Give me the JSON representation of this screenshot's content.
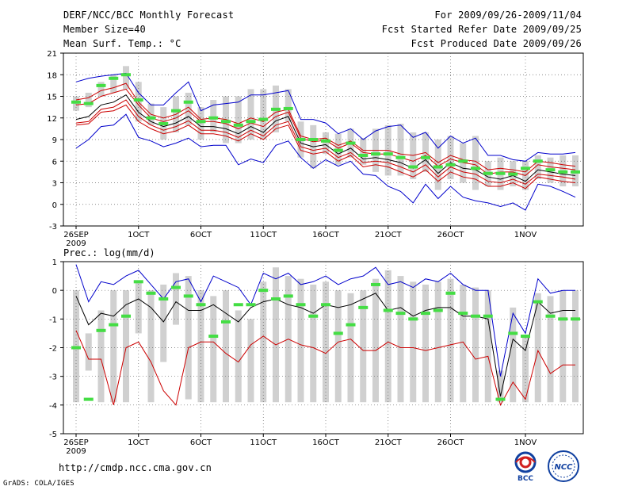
{
  "header": {
    "title": "DERF/NCC/BCC Monthly Forecast",
    "member_size": "Member Size=40",
    "variable": "Mean Surf. Temp.: °C",
    "period": "For 2009/09/26-2009/11/04",
    "started": "Fcst Started Refer Date 2009/09/25",
    "produced": "Fcst Produced Date 2009/09/26"
  },
  "footer": {
    "url": "http://cmdp.ncc.cma.gov.cn",
    "credit": "GrADS: COLA/IGES",
    "logo_bcc": "BCC",
    "logo_ncc": "NCC"
  },
  "colors": {
    "blue": "#0000cc",
    "red": "#cc0000",
    "black": "#000000",
    "green": "#44dd44",
    "box": "#d0d0d0",
    "grid": "#666666"
  },
  "chart_data": [
    {
      "type": "line",
      "title": "Mean Surf. Temp.: °C",
      "ylim": [
        -3,
        21
      ],
      "yticks": [
        -3,
        0,
        3,
        6,
        9,
        12,
        15,
        18,
        21
      ],
      "xlim": [
        0,
        39
      ],
      "xticks": [
        {
          "day": 0,
          "label": "26SEP",
          "sub": "2009"
        },
        {
          "day": 5,
          "label": "1OCT"
        },
        {
          "day": 10,
          "label": "6OCT"
        },
        {
          "day": 15,
          "label": "11OCT"
        },
        {
          "day": 20,
          "label": "16OCT"
        },
        {
          "day": 25,
          "label": "21OCT"
        },
        {
          "day": 30,
          "label": "26OCT"
        },
        {
          "day": 36,
          "label": "1NOV"
        }
      ],
      "series": [
        {
          "name": "max",
          "color": "blue",
          "values": [
            7.8,
            9,
            10.8,
            11,
            12.5,
            9.3,
            8.8,
            8,
            8.5,
            9.2,
            8,
            8.2,
            8.2,
            5.5,
            6.3,
            5.8,
            8.2,
            8.8,
            6.5,
            5,
            6.2,
            5.3,
            6,
            4.2,
            4,
            2.5,
            1.8,
            0.2,
            2.8,
            0.8,
            2.5,
            1,
            0.5,
            0.2,
            -0.3,
            0.2,
            -0.8,
            2.8,
            2.5,
            1.8,
            1
          ]
        },
        {
          "name": "p90",
          "color": "red",
          "values": [
            14.5,
            14.8,
            15.8,
            16.2,
            16.8,
            14.2,
            12.5,
            12,
            12.5,
            13.5,
            11.8,
            12,
            11.8,
            11.2,
            12,
            11.5,
            12.8,
            13.2,
            9.5,
            9,
            9.2,
            8.2,
            8.8,
            7.5,
            7.5,
            7.5,
            7,
            6.8,
            7.2,
            5.8,
            6.8,
            6.2,
            6,
            4.8,
            5,
            4.8,
            4.5,
            6,
            5.8,
            5.5,
            5.3
          ]
        },
        {
          "name": "p75",
          "color": "red",
          "values": [
            13.8,
            14,
            15,
            15.5,
            16,
            13.8,
            12,
            11.5,
            12,
            13,
            11.5,
            11.5,
            11.2,
            10.5,
            11.3,
            10.8,
            12.2,
            12.8,
            9.2,
            8.7,
            8.9,
            7.8,
            8.5,
            7.2,
            7,
            7,
            6.5,
            6,
            6.8,
            5.3,
            6.3,
            5.8,
            5.5,
            4.2,
            4.5,
            4.5,
            4,
            5.5,
            5.2,
            5,
            4.8
          ]
        },
        {
          "name": "mean",
          "color": "black",
          "values": [
            11.8,
            12.2,
            13.8,
            14.2,
            15.2,
            12.8,
            11.5,
            10.8,
            11.3,
            12.2,
            10.8,
            10.8,
            10.5,
            9.8,
            10.8,
            10,
            11.6,
            12.2,
            8.5,
            8,
            8.3,
            7,
            7.8,
            6.3,
            6.5,
            6.2,
            5.8,
            5,
            6.2,
            4.3,
            5.8,
            5,
            4.8,
            3.8,
            3.5,
            4,
            3.2,
            4.8,
            4.5,
            4.2,
            4
          ]
        },
        {
          "name": "p25",
          "color": "red",
          "values": [
            11.3,
            11.5,
            13.2,
            13.5,
            14.5,
            12.2,
            11,
            10.3,
            10.8,
            11.6,
            10.3,
            10.3,
            10,
            9.3,
            10.3,
            9.5,
            11,
            11.5,
            8,
            7.5,
            7.8,
            6.5,
            7.2,
            5.8,
            6,
            5.8,
            5.2,
            4.5,
            5.5,
            3.8,
            5.2,
            4.5,
            4.2,
            3.2,
            3,
            3.5,
            2.8,
            4.2,
            4,
            3.8,
            3.5
          ]
        },
        {
          "name": "p10",
          "color": "red",
          "values": [
            11,
            11.2,
            12.8,
            13,
            13.8,
            11.5,
            10.5,
            9.8,
            10.2,
            11,
            9.8,
            9.8,
            9.5,
            8.8,
            9.8,
            9,
            10.5,
            11,
            7.5,
            7,
            7.3,
            6,
            6.8,
            5.2,
            5.5,
            5.2,
            4.5,
            3.8,
            4.8,
            3.2,
            4.5,
            3.8,
            3.5,
            2.5,
            2.5,
            3,
            2.2,
            3.8,
            3.5,
            3.2,
            3
          ]
        },
        {
          "name": "min",
          "color": "blue",
          "values": [
            17,
            17.5,
            17.8,
            18,
            18.2,
            15.5,
            13.8,
            13.8,
            15.5,
            17,
            13,
            13.8,
            14,
            14.2,
            15.2,
            15.2,
            15.5,
            15.8,
            11.8,
            11.8,
            11.3,
            9.8,
            10.5,
            9,
            10.2,
            10.8,
            11,
            9.3,
            10,
            7.8,
            9.5,
            8.5,
            9.2,
            6.8,
            6.8,
            6.2,
            6,
            7.2,
            7,
            7,
            7.2
          ]
        }
      ],
      "ensemble_box": {
        "low": [
          13,
          13.5,
          15,
          15.5,
          16,
          11.5,
          11,
          9,
          10,
          11,
          9,
          10,
          8.5,
          8.5,
          9,
          9,
          10,
          11.5,
          6.5,
          5,
          7,
          5.5,
          6.5,
          5.5,
          4.5,
          4,
          4,
          3.5,
          4.5,
          2,
          3.5,
          3,
          2,
          2.5,
          2,
          2.5,
          2,
          3.5,
          3,
          2.5,
          2.5
        ],
        "high": [
          15,
          15.5,
          17,
          18,
          19.2,
          17,
          14,
          13.5,
          15,
          15.5,
          13.5,
          14.5,
          15,
          15,
          16,
          16,
          16.5,
          16,
          11.5,
          11,
          10,
          9.8,
          10.5,
          9.2,
          10.5,
          11,
          11.2,
          10,
          10,
          9,
          9.5,
          8.5,
          9.5,
          6,
          6.5,
          6,
          6,
          6.8,
          6.5,
          6.8,
          6.8
        ]
      },
      "observed_marks": [
        14.2,
        14,
        16.5,
        17.5,
        18,
        14.5,
        12,
        11.2,
        13,
        14.2,
        11.5,
        12,
        11.5,
        11,
        11.5,
        11.8,
        13.2,
        13.3,
        9,
        9,
        8.8,
        7.5,
        8.5,
        6.8,
        7,
        7,
        6.5,
        5.2,
        6.5,
        5.2,
        5.5,
        6,
        5,
        4.3,
        4.3,
        4.2,
        5,
        6,
        4.8,
        4.5,
        4.5
      ]
    },
    {
      "type": "line",
      "title": "Prec.: log(mm/d)",
      "ylim": [
        -5,
        1
      ],
      "yticks": [
        -5,
        -4,
        -3,
        -2,
        -1,
        0,
        1
      ],
      "xlim": [
        0,
        39
      ],
      "xticks": [
        {
          "day": 0,
          "label": "26SEP",
          "sub": "2009"
        },
        {
          "day": 5,
          "label": "1OCT"
        },
        {
          "day": 10,
          "label": "6OCT"
        },
        {
          "day": 15,
          "label": "11OCT"
        },
        {
          "day": 20,
          "label": "16OCT"
        },
        {
          "day": 25,
          "label": "21OCT"
        },
        {
          "day": 30,
          "label": "26OCT"
        },
        {
          "day": 36,
          "label": "1NOV"
        }
      ],
      "series": [
        {
          "name": "max",
          "color": "blue",
          "values": [
            0.9,
            -0.4,
            0.3,
            0.2,
            0.5,
            0.7,
            0.2,
            -0.3,
            0.3,
            0.4,
            -0.4,
            0.5,
            0.3,
            0.1,
            -0.5,
            0.6,
            0.4,
            0.6,
            0.2,
            0.3,
            0.5,
            0.2,
            0.4,
            0.5,
            0.8,
            0.2,
            0.3,
            0.1,
            0.4,
            0.3,
            0.6,
            0.2,
            0,
            0,
            -3,
            -0.8,
            -1.5,
            0.4,
            -0.1,
            0,
            0
          ]
        },
        {
          "name": "mean",
          "color": "black",
          "values": [
            -0.2,
            -1.2,
            -0.8,
            -0.9,
            -0.5,
            -0.3,
            -0.6,
            -1.1,
            -0.4,
            -0.7,
            -0.7,
            -0.5,
            -0.8,
            -1.1,
            -0.6,
            -0.4,
            -0.3,
            -0.5,
            -0.6,
            -0.8,
            -0.5,
            -0.6,
            -0.5,
            -0.3,
            -0.1,
            -0.7,
            -0.6,
            -0.9,
            -0.7,
            -0.6,
            -0.6,
            -0.9,
            -0.9,
            -1,
            -3.7,
            -1.7,
            -2.1,
            -0.4,
            -0.8,
            -0.7,
            -0.7
          ]
        },
        {
          "name": "min",
          "color": "red",
          "values": [
            -1.4,
            -2.4,
            -2.4,
            -4,
            -2,
            -1.8,
            -2.5,
            -3.5,
            -4,
            -2,
            -1.8,
            -1.8,
            -2.2,
            -2.5,
            -1.9,
            -1.6,
            -1.9,
            -1.7,
            -1.9,
            -2,
            -2.2,
            -1.8,
            -1.7,
            -2.1,
            -2.1,
            -1.8,
            -2,
            -2,
            -2.1,
            -2,
            -1.9,
            -1.8,
            -2.4,
            -2.3,
            -4,
            -3.2,
            -3.8,
            -2.1,
            -2.9,
            -2.6,
            -2.6
          ]
        }
      ],
      "ensemble_box": {
        "low": [
          -3.9,
          -2.8,
          -3.9,
          -3.9,
          -3.9,
          -1.5,
          -3.9,
          -2.5,
          -1.2,
          -3.8,
          -3.9,
          -3.9,
          -3.9,
          -3.9,
          -3.9,
          -3.9,
          -3.9,
          -3.9,
          -3.9,
          -3.9,
          -3.9,
          -3.9,
          -3.9,
          -3.9,
          -3.9,
          -3.9,
          -3.9,
          -3.9,
          -3.9,
          -3.9,
          -3.9,
          -3.9,
          -3.9,
          -3.9,
          -3.9,
          -3.9,
          -3.9,
          -3.9,
          -3.9,
          -3.9,
          -3.9
        ],
        "high": [
          0,
          -1.5,
          -0.7,
          0,
          0,
          0.3,
          0,
          0.2,
          0.6,
          0.5,
          0,
          -0.2,
          0,
          -0.7,
          -1,
          0.3,
          0.8,
          0.5,
          0.4,
          0.2,
          0.3,
          0,
          -0.1,
          0,
          0.4,
          0.7,
          0.5,
          0.3,
          0.2,
          0.3,
          0.4,
          0.2,
          0.1,
          0,
          -2.8,
          -0.6,
          -1.6,
          -0.1,
          -0.2,
          0,
          0
        ]
      },
      "observed_marks": [
        -2,
        -3.8,
        -1.4,
        -1.2,
        -0.9,
        0.3,
        -0.1,
        -0.3,
        0.1,
        -0.2,
        -0.5,
        -1.6,
        -1.1,
        -0.5,
        -0.5,
        0,
        -0.3,
        -0.2,
        -0.5,
        -0.9,
        -0.5,
        -1.5,
        -1.2,
        -0.6,
        0.2,
        -0.7,
        -0.8,
        -1,
        -0.8,
        -0.7,
        -0.1,
        -0.8,
        -0.9,
        -0.9,
        -3.8,
        -1.5,
        -1.6,
        -0.4,
        -0.9,
        -1,
        -1
      ]
    }
  ]
}
